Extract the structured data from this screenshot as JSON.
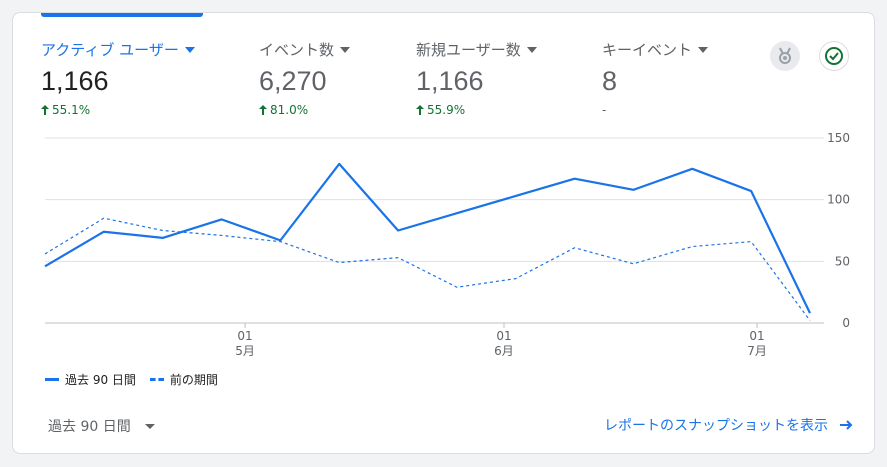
{
  "metrics": [
    {
      "label": "アクティブ ユーザー",
      "value": "1,166",
      "delta": "55.1%",
      "active": true
    },
    {
      "label": "イベント数",
      "value": "6,270",
      "delta": "81.0%",
      "active": false
    },
    {
      "label": "新規ユーザー数",
      "value": "1,166",
      "delta": "55.9%",
      "active": false
    },
    {
      "label": "キーイベント",
      "value": "8",
      "delta": "-",
      "active": false
    }
  ],
  "icons": {
    "medal": "medal-icon",
    "check": "check-circle-icon",
    "caret": "caret-down-icon",
    "arrow": "arrow-right-icon"
  },
  "colors": {
    "accent": "#1a73e8",
    "positive": "#137333",
    "grid": "#e0e0e0",
    "axis": "#5f6368"
  },
  "chart_data": {
    "type": "line",
    "x": [
      0,
      1,
      2,
      3,
      4,
      5,
      6,
      7,
      8,
      9,
      10,
      11,
      12,
      13
    ],
    "series": [
      {
        "name": "過去 90 日間",
        "style": "solid",
        "values": [
          46,
          74,
          69,
          84,
          67,
          129,
          75,
          89,
          103,
          117,
          108,
          125,
          107,
          8
        ]
      },
      {
        "name": "前の期間",
        "style": "dashed",
        "values": [
          56,
          85,
          75,
          71,
          66,
          49,
          53,
          29,
          36,
          61,
          48,
          62,
          66,
          2
        ]
      }
    ],
    "yticks": [
      0,
      50,
      100,
      150
    ],
    "ylim": [
      0,
      150
    ],
    "xticks": [
      {
        "at": 3.4,
        "day": "01",
        "month": "5月"
      },
      {
        "at": 7.8,
        "day": "01",
        "month": "6月"
      },
      {
        "at": 12.1,
        "day": "01",
        "month": "7月"
      }
    ],
    "grid": true,
    "legend": "bottom-left"
  },
  "footer": {
    "range_label": "過去 90 日間",
    "snapshot_link": "レポートのスナップショットを表示"
  }
}
